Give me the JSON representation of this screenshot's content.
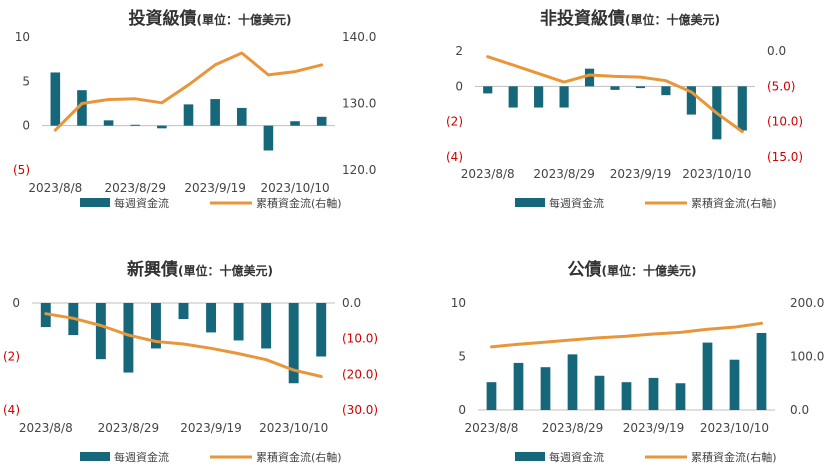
{
  "colors": {
    "bar": "#17677a",
    "line": "#e8963a",
    "neg": "#d00000",
    "axis": "#444444",
    "grid": "#cccccc"
  },
  "legend": {
    "bar_label": "每週資金流",
    "line_label": "累積資金流(右軸)"
  },
  "chart_data": [
    {
      "type": "bar",
      "title": "投資級債",
      "subtitle": "(單位：十億美元)",
      "xticks": [
        "2023/8/8",
        "2023/8/29",
        "2023/9/19",
        "2023/10/10"
      ],
      "series": [
        {
          "name": "每週資金流",
          "type": "bar",
          "axis": "left",
          "values": [
            6.0,
            4.0,
            0.6,
            0.1,
            -0.3,
            2.4,
            3.0,
            2.0,
            -2.8,
            0.5,
            1.0
          ]
        },
        {
          "name": "累積資金流(右軸)",
          "type": "line",
          "axis": "right",
          "values": [
            126.0,
            130.0,
            130.6,
            130.7,
            130.1,
            132.8,
            135.8,
            137.6,
            134.3,
            134.8,
            135.8
          ]
        }
      ],
      "left_axis": {
        "min": -5,
        "max": 10,
        "ticks": [
          10,
          5,
          0,
          -5
        ],
        "labels": [
          "10",
          "5",
          "0",
          "(5)"
        ]
      },
      "right_axis": {
        "min": 120,
        "max": 140,
        "ticks": [
          140,
          130,
          120
        ],
        "labels": [
          "140.0",
          "130.0",
          "120.0"
        ]
      }
    },
    {
      "type": "bar",
      "title": "非投資級債",
      "subtitle": "(單位：十億美元)",
      "xticks": [
        "2023/8/8",
        "2023/8/29",
        "2023/9/19",
        "2023/10/10"
      ],
      "series": [
        {
          "name": "每週資金流",
          "type": "bar",
          "axis": "left",
          "values": [
            -0.4,
            -1.2,
            -1.2,
            -1.2,
            1.0,
            -0.2,
            -0.1,
            -0.5,
            -1.6,
            -3.0,
            -2.5
          ]
        },
        {
          "name": "累積資金流(右軸)",
          "type": "line",
          "axis": "right",
          "values": [
            -0.8,
            -2.0,
            -3.2,
            -4.4,
            -3.4,
            -3.6,
            -3.7,
            -4.2,
            -5.8,
            -8.8,
            -11.4
          ]
        }
      ],
      "left_axis": {
        "min": -4,
        "max": 2,
        "ticks": [
          2,
          0,
          -2,
          -4
        ],
        "labels": [
          "2",
          "0",
          "(2)",
          "(4)"
        ]
      },
      "right_axis": {
        "min": -15,
        "max": 0,
        "ticks": [
          0,
          -5,
          -10,
          -15
        ],
        "labels": [
          "0.0",
          "(5.0)",
          "(10.0)",
          "(15.0)"
        ]
      }
    },
    {
      "type": "bar",
      "title": "新興債",
      "subtitle": "(單位：十億美元)",
      "xticks": [
        "2023/8/8",
        "2023/8/29",
        "2023/9/19",
        "2023/10/10"
      ],
      "series": [
        {
          "name": "每週資金流",
          "type": "bar",
          "axis": "left",
          "values": [
            -0.9,
            -1.2,
            -2.1,
            -2.6,
            -1.7,
            -0.6,
            -1.1,
            -1.4,
            -1.7,
            -3.0,
            -2.0
          ]
        },
        {
          "name": "累積資金流(右軸)",
          "type": "line",
          "axis": "right",
          "values": [
            -3.0,
            -4.3,
            -6.3,
            -9.0,
            -10.8,
            -11.5,
            -12.7,
            -14.2,
            -15.9,
            -18.8,
            -20.6
          ]
        }
      ],
      "left_axis": {
        "min": -4,
        "max": 0,
        "ticks": [
          0,
          -2,
          -4
        ],
        "labels": [
          "0",
          "(2)",
          "(4)"
        ]
      },
      "right_axis": {
        "min": -30,
        "max": 0,
        "ticks": [
          0,
          -10,
          -20,
          -30
        ],
        "labels": [
          "0.0",
          "(10.0)",
          "(20.0)",
          "(30.0)"
        ]
      }
    },
    {
      "type": "bar",
      "title": "公債",
      "subtitle": "(單位：十億美元)",
      "xticks": [
        "2023/8/8",
        "2023/8/29",
        "2023/9/19",
        "2023/10/10"
      ],
      "series": [
        {
          "name": "每週資金流",
          "type": "bar",
          "axis": "left",
          "values": [
            2.6,
            4.4,
            4.0,
            5.2,
            3.2,
            2.6,
            3.0,
            2.5,
            6.3,
            4.7,
            7.2
          ]
        },
        {
          "name": "累積資金流(右軸)",
          "type": "line",
          "axis": "right",
          "values": [
            118.0,
            123.0,
            127.0,
            131.0,
            135.0,
            138.0,
            142.0,
            145.0,
            151.0,
            155.0,
            162.0
          ]
        }
      ],
      "left_axis": {
        "min": 0,
        "max": 10,
        "ticks": [
          10,
          5,
          0
        ],
        "labels": [
          "10",
          "5",
          "0"
        ]
      },
      "right_axis": {
        "min": 0,
        "max": 200,
        "ticks": [
          200,
          100,
          0
        ],
        "labels": [
          "200.0",
          "100.0",
          "0.0"
        ]
      }
    }
  ]
}
